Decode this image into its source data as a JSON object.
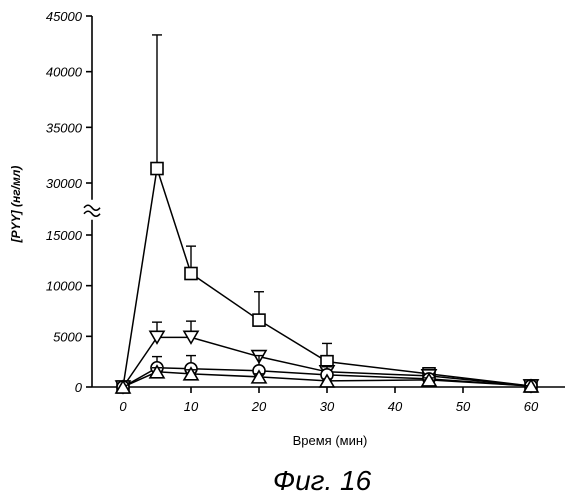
{
  "chart_data": {
    "type": "line",
    "title": "",
    "xlabel": "Время (мин)",
    "ylabel": "[PYY]  (нг/мл)",
    "caption": "Фиг. 16",
    "xlim": [
      -5,
      65
    ],
    "x_ticks": [
      0,
      10,
      20,
      30,
      40,
      50,
      60
    ],
    "y_ticks_lower": [
      0,
      5000,
      10000,
      15000
    ],
    "y_ticks_upper": [
      30000,
      35000,
      40000,
      45000
    ],
    "axis_break": {
      "from": 16500,
      "to": 28500
    },
    "grid": false,
    "legend": "none",
    "series": [
      {
        "marker": "square",
        "x": [
          0,
          5,
          10,
          20,
          30,
          45,
          60
        ],
        "y": [
          0,
          31300,
          11200,
          6600,
          2500,
          1300,
          100
        ],
        "err": [
          0,
          12000,
          2700,
          2800,
          1800,
          600,
          0
        ]
      },
      {
        "marker": "triangle-down",
        "x": [
          0,
          5,
          10,
          20,
          30,
          45,
          60
        ],
        "y": [
          0,
          4900,
          4900,
          3000,
          1500,
          1100,
          100
        ],
        "err": [
          0,
          1500,
          1600,
          400,
          300,
          200,
          0
        ]
      },
      {
        "marker": "circle",
        "x": [
          0,
          5,
          10,
          20,
          30,
          45,
          60
        ],
        "y": [
          0,
          1900,
          1800,
          1600,
          1200,
          800,
          100
        ],
        "err": [
          0,
          1100,
          1300,
          1500,
          800,
          300,
          0
        ]
      },
      {
        "marker": "triangle-up",
        "x": [
          0,
          5,
          10,
          20,
          30,
          45,
          60
        ],
        "y": [
          0,
          1500,
          1300,
          1000,
          600,
          700,
          100
        ],
        "err": [
          0,
          400,
          400,
          300,
          200,
          200,
          0
        ]
      }
    ]
  }
}
